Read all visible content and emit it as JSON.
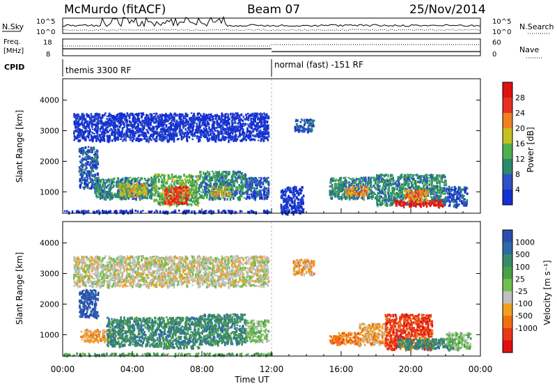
{
  "header": {
    "site": "McMurdo (fitACF)",
    "beam": "Beam 07",
    "date": "25/Nov/2014"
  },
  "strip": {
    "left_labels": [
      "N.Sky",
      "Freq.",
      "[MHz]",
      "CPID"
    ],
    "right_labels": [
      "N.Search",
      "Nave"
    ],
    "nsky_ticks": [
      "10^5",
      "10^0"
    ],
    "nsearch_ticks": [
      "10^5",
      "10^0"
    ],
    "freq_ticks": [
      "18",
      "8"
    ],
    "nave_ticks": [
      "60",
      "0"
    ],
    "cpid_left": "themis 3300 RF",
    "cpid_right": "normal (fast) -151 RF"
  },
  "chart_data": [
    {
      "type": "heatmap",
      "name": "power",
      "ylabel": "Slant Range [km]",
      "ylim": [
        300,
        4700
      ],
      "yticks": [
        1000,
        2000,
        3000,
        4000
      ],
      "xlabel": "",
      "xlim_hours": [
        0,
        24
      ],
      "colorbar": {
        "label": "Power [dB]",
        "ticks": [
          "4",
          "8",
          "12",
          "16",
          "20",
          "24",
          "28"
        ],
        "colors": [
          "#1530d0",
          "#2e50c8",
          "#2a8a6a",
          "#50b050",
          "#c8c020",
          "#f08020",
          "#e83020",
          "#e01010"
        ]
      },
      "regions": [
        {
          "t0": 0.0,
          "t1": 12.0,
          "r0": 350,
          "r1": 420,
          "level": 0
        },
        {
          "t0": 0.9,
          "t1": 2.0,
          "r0": 1100,
          "r1": 2500,
          "level": 1
        },
        {
          "t0": 1.8,
          "t1": 5.2,
          "r0": 800,
          "r1": 1500,
          "level": 2
        },
        {
          "t0": 3.2,
          "t1": 4.8,
          "r0": 900,
          "r1": 1300,
          "level": 4
        },
        {
          "t0": 5.2,
          "t1": 7.8,
          "r0": 600,
          "r1": 1600,
          "level": 3
        },
        {
          "t0": 5.8,
          "t1": 7.2,
          "r0": 650,
          "r1": 1200,
          "level": 6
        },
        {
          "t0": 7.8,
          "t1": 10.5,
          "r0": 800,
          "r1": 1700,
          "level": 2
        },
        {
          "t0": 8.5,
          "t1": 9.6,
          "r0": 900,
          "r1": 1200,
          "level": 4
        },
        {
          "t0": 10.5,
          "t1": 11.8,
          "r0": 800,
          "r1": 1500,
          "level": 1
        },
        {
          "t0": 12.5,
          "t1": 13.8,
          "r0": 300,
          "r1": 1200,
          "level": 0
        },
        {
          "t0": 15.3,
          "t1": 18.0,
          "r0": 800,
          "r1": 1500,
          "level": 2
        },
        {
          "t0": 16.2,
          "t1": 17.5,
          "r0": 900,
          "r1": 1200,
          "level": 5
        },
        {
          "t0": 18.0,
          "t1": 22.0,
          "r0": 600,
          "r1": 1600,
          "level": 2
        },
        {
          "t0": 19.0,
          "t1": 21.8,
          "r0": 550,
          "r1": 750,
          "level": 7
        },
        {
          "t0": 19.6,
          "t1": 21.0,
          "r0": 700,
          "r1": 1100,
          "level": 5
        },
        {
          "t0": 22.0,
          "t1": 23.2,
          "r0": 550,
          "r1": 1200,
          "level": 1
        },
        {
          "t0": 0.6,
          "t1": 11.8,
          "r0": 2700,
          "r1": 3600,
          "level": 0
        },
        {
          "t0": 13.3,
          "t1": 14.4,
          "r0": 3000,
          "r1": 3400,
          "level": 1
        }
      ]
    },
    {
      "type": "heatmap",
      "name": "velocity",
      "ylabel": "Slant Range [km]",
      "ylim": [
        300,
        4700
      ],
      "yticks": [
        1000,
        2000,
        3000,
        4000
      ],
      "xlabel": "Time UT",
      "xticks": [
        "00:00",
        "04:00",
        "08:00",
        "12:00",
        "16:00",
        "20:00",
        "00:00"
      ],
      "xlim_hours": [
        0,
        24
      ],
      "colorbar": {
        "label": "Velocity [m s⁻¹]",
        "ticks": [
          "1000",
          "500",
          "100",
          "25",
          "-25",
          "-100",
          "-500",
          "-1000"
        ],
        "colors": [
          "#2a4fb0",
          "#2f6aa8",
          "#3a8a6a",
          "#4aa048",
          "#70c050",
          "#c0c0c0",
          "#f0a020",
          "#f07010",
          "#e83818",
          "#e01010"
        ]
      },
      "regions": [
        {
          "t0": 0.0,
          "t1": 12.0,
          "r0": 350,
          "r1": 420,
          "level": 3
        },
        {
          "t0": 0.9,
          "t1": 2.0,
          "r0": 1600,
          "r1": 2500,
          "level": 0
        },
        {
          "t0": 1.0,
          "t1": 3.0,
          "r0": 800,
          "r1": 1200,
          "level": 6
        },
        {
          "t0": 2.5,
          "t1": 5.2,
          "r0": 650,
          "r1": 1600,
          "level": 2
        },
        {
          "t0": 5.2,
          "t1": 7.8,
          "r0": 600,
          "r1": 1600,
          "level": 2
        },
        {
          "t0": 7.8,
          "t1": 10.5,
          "r0": 700,
          "r1": 1700,
          "level": 2
        },
        {
          "t0": 10.5,
          "t1": 11.8,
          "r0": 800,
          "r1": 1500,
          "level": 4
        },
        {
          "t0": 15.3,
          "t1": 17.0,
          "r0": 700,
          "r1": 1100,
          "level": 7
        },
        {
          "t0": 17.0,
          "t1": 18.5,
          "r0": 700,
          "r1": 1400,
          "level": 6
        },
        {
          "t0": 18.5,
          "t1": 21.2,
          "r0": 550,
          "r1": 1700,
          "level": 8
        },
        {
          "t0": 19.2,
          "t1": 22.4,
          "r0": 550,
          "r1": 900,
          "level": 2
        },
        {
          "t0": 22.0,
          "t1": 23.4,
          "r0": 550,
          "r1": 1100,
          "level": 4
        },
        {
          "t0": 0.6,
          "t1": 11.8,
          "r0": 2600,
          "r1": 3600,
          "level": 5
        },
        {
          "t0": 13.2,
          "t1": 14.4,
          "r0": 3000,
          "r1": 3500,
          "level": 6
        }
      ]
    }
  ]
}
